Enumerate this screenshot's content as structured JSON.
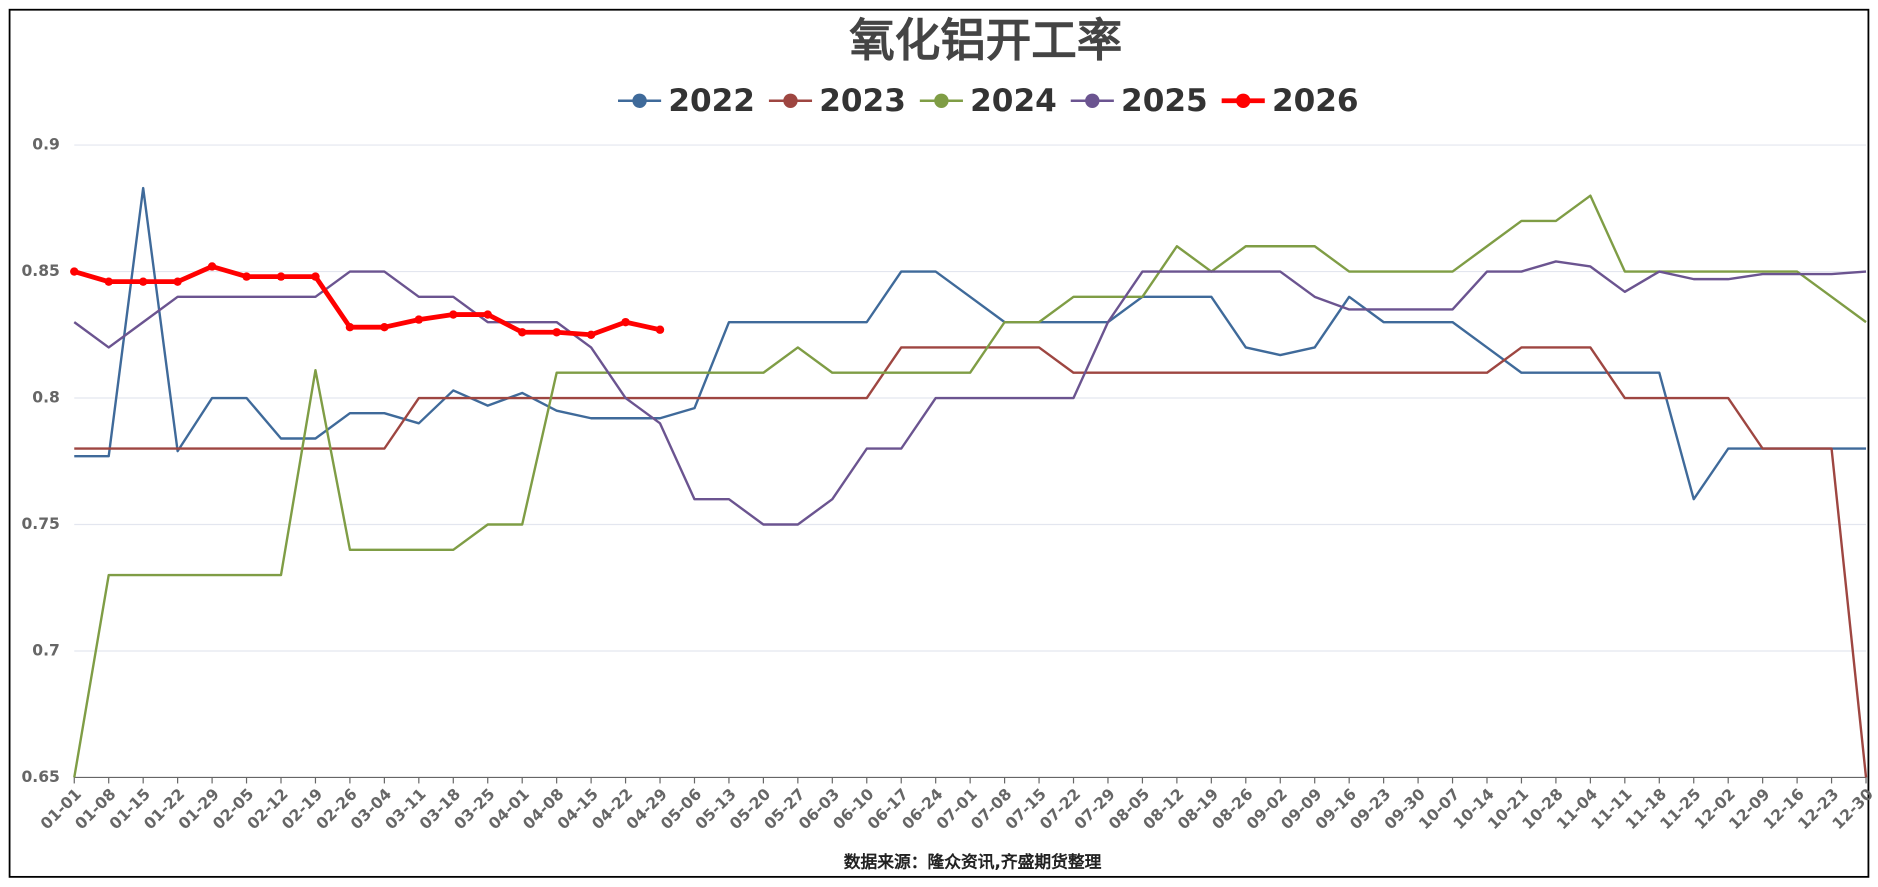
{
  "chart_data": {
    "type": "line",
    "title": "氧化铝开工率",
    "source": "数据来源：隆众资讯,齐盛期货整理",
    "categories": [
      "01-01",
      "01-08",
      "01-15",
      "01-22",
      "01-29",
      "02-05",
      "02-12",
      "02-19",
      "02-26",
      "03-04",
      "03-11",
      "03-18",
      "03-25",
      "04-01",
      "04-08",
      "04-15",
      "04-22",
      "04-29",
      "05-06",
      "05-13",
      "05-20",
      "05-27",
      "06-03",
      "06-10",
      "06-17",
      "06-24",
      "07-01",
      "07-08",
      "07-15",
      "07-22",
      "07-29",
      "08-05",
      "08-12",
      "08-19",
      "08-26",
      "09-02",
      "09-09",
      "09-16",
      "09-23",
      "09-30",
      "10-07",
      "10-14",
      "10-21",
      "10-28",
      "11-04",
      "11-11",
      "11-18",
      "11-25",
      "12-02",
      "12-09",
      "12-16",
      "12-23",
      "12-30"
    ],
    "ylim": [
      0.65,
      0.9
    ],
    "yticks": [
      0.65,
      0.7,
      0.75,
      0.8,
      0.85,
      0.9
    ],
    "grid": true,
    "legend": "top",
    "series": [
      {
        "name": "2022",
        "color": "#3f6a9a",
        "values": [
          0.777,
          0.777,
          0.883,
          0.779,
          0.8,
          0.8,
          0.784,
          0.784,
          0.794,
          0.794,
          0.79,
          0.803,
          0.797,
          0.802,
          0.795,
          0.792,
          0.792,
          0.792,
          0.796,
          0.83,
          0.83,
          0.83,
          0.83,
          0.83,
          0.85,
          0.85,
          0.84,
          0.83,
          0.83,
          0.83,
          0.83,
          0.84,
          0.84,
          0.84,
          0.82,
          0.817,
          0.82,
          0.84,
          0.83,
          0.83,
          0.83,
          0.82,
          0.81,
          0.81,
          0.81,
          0.81,
          0.81,
          0.76,
          0.78,
          0.78,
          0.78,
          0.78,
          0.78
        ]
      },
      {
        "name": "2023",
        "color": "#9e4641",
        "values": [
          0.78,
          0.78,
          0.78,
          0.78,
          0.78,
          0.78,
          0.78,
          0.78,
          0.78,
          0.78,
          0.8,
          0.8,
          0.8,
          0.8,
          0.8,
          0.8,
          0.8,
          0.8,
          0.8,
          0.8,
          0.8,
          0.8,
          0.8,
          0.8,
          0.82,
          0.82,
          0.82,
          0.82,
          0.82,
          0.81,
          0.81,
          0.81,
          0.81,
          0.81,
          0.81,
          0.81,
          0.81,
          0.81,
          0.81,
          0.81,
          0.81,
          0.81,
          0.82,
          0.82,
          0.82,
          0.8,
          0.8,
          0.8,
          0.8,
          0.78,
          0.78,
          0.78,
          0.65
        ]
      },
      {
        "name": "2024",
        "color": "#7f9d45",
        "values": [
          0.65,
          0.73,
          0.73,
          0.73,
          0.73,
          0.73,
          0.73,
          0.811,
          0.74,
          0.74,
          0.74,
          0.74,
          0.75,
          0.75,
          0.81,
          0.81,
          0.81,
          0.81,
          0.81,
          0.81,
          0.81,
          0.82,
          0.81,
          0.81,
          0.81,
          0.81,
          0.81,
          0.83,
          0.83,
          0.84,
          0.84,
          0.84,
          0.86,
          0.85,
          0.86,
          0.86,
          0.86,
          0.85,
          0.85,
          0.85,
          0.85,
          0.86,
          0.87,
          0.87,
          0.88,
          0.85,
          0.85,
          0.85,
          0.85,
          0.85,
          0.85,
          0.84,
          0.83
        ]
      },
      {
        "name": "2025",
        "color": "#6b5490",
        "values": [
          0.83,
          0.82,
          0.83,
          0.84,
          0.84,
          0.84,
          0.84,
          0.84,
          0.85,
          0.85,
          0.84,
          0.84,
          0.83,
          0.83,
          0.83,
          0.82,
          0.8,
          0.79,
          0.76,
          0.76,
          0.75,
          0.75,
          0.76,
          0.78,
          0.78,
          0.8,
          0.8,
          0.8,
          0.8,
          0.8,
          0.83,
          0.85,
          0.85,
          0.85,
          0.85,
          0.85,
          0.84,
          0.835,
          0.835,
          0.835,
          0.835,
          0.85,
          0.85,
          0.854,
          0.852,
          0.842,
          0.85,
          0.847,
          0.847,
          0.849,
          0.849,
          0.849,
          0.85
        ]
      },
      {
        "name": "2026",
        "color": "#ff0000",
        "marker": true,
        "values": [
          0.85,
          0.846,
          0.846,
          0.846,
          0.852,
          0.848,
          0.848,
          0.848,
          0.828,
          0.828,
          0.831,
          0.833,
          0.833,
          0.826,
          0.826,
          0.825,
          0.83,
          0.827,
          null,
          null,
          null,
          null,
          null,
          null,
          null,
          null,
          null,
          null,
          null,
          null,
          null,
          null,
          null,
          null,
          null,
          null,
          null,
          null,
          null,
          null,
          null,
          null,
          null,
          null,
          null,
          null,
          null,
          null,
          null,
          null,
          null,
          null,
          null
        ]
      }
    ]
  }
}
